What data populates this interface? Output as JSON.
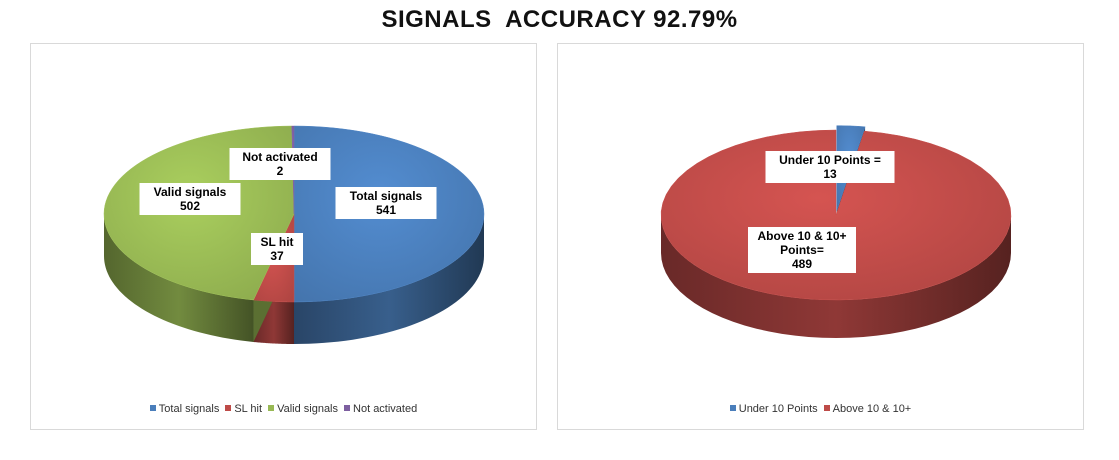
{
  "title": "SIGNALS  ACCURACY 92.79%",
  "colors": {
    "blue": "#4a7ebb",
    "red": "#be4b48",
    "green": "#98b954",
    "purple": "#7d5fa0"
  },
  "chart_data": [
    {
      "type": "pie",
      "title": "",
      "legend_position": "bottom",
      "categories": [
        "Total signals",
        "SL hit",
        "Valid signals",
        "Not activated"
      ],
      "values": [
        541,
        37,
        502,
        2
      ],
      "colors": [
        "#4a7ebb",
        "#be4b48",
        "#98b954",
        "#7d5fa0"
      ],
      "data_labels": [
        [
          "Total signals",
          "541"
        ],
        [
          "SL hit",
          "37"
        ],
        [
          "Valid signals",
          "502"
        ],
        [
          "Not activated",
          "2"
        ]
      ]
    },
    {
      "type": "pie",
      "title": "",
      "legend_position": "bottom",
      "categories": [
        "Under 10 Points",
        "Above 10 & 10+"
      ],
      "values": [
        13,
        489
      ],
      "colors": [
        "#4a7ebb",
        "#be4b48"
      ],
      "data_labels": [
        [
          "Under 10 Points =",
          "13"
        ],
        [
          "Above 10 & 10+",
          "Points=",
          "489"
        ]
      ]
    }
  ]
}
